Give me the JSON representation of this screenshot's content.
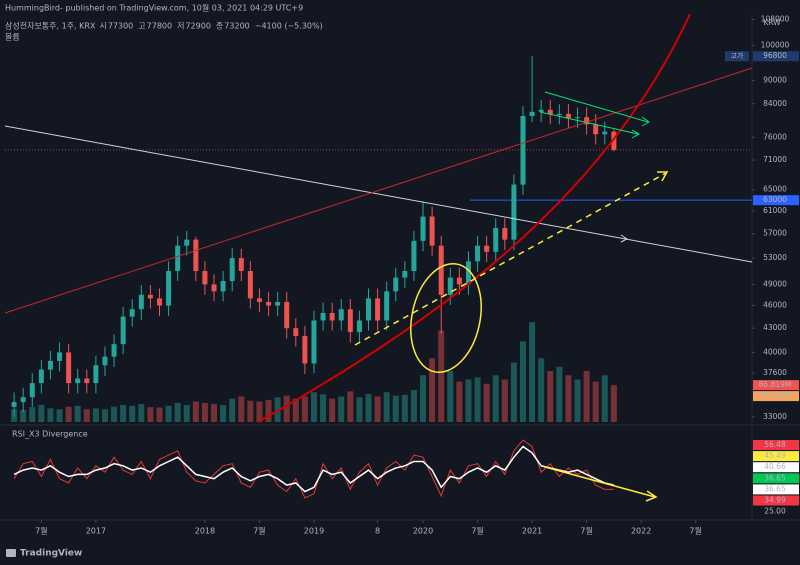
{
  "header": {
    "published": "HummingBird- published on TradingView.com, 10월 03, 2021 04:29 UTC+9",
    "logo": "TradingView"
  },
  "chart_data": [
    {
      "type": "candlestick",
      "symbol": "삼성전자보통주, 1주, KRX",
      "volume_title": "볼륨",
      "legend": [
        {
          "key": "시",
          "text": "77300"
        },
        {
          "key": "고",
          "text": "77800"
        },
        {
          "key": "저",
          "text": "72900"
        },
        {
          "key": "종",
          "text": "73200"
        }
      ],
      "change": "−4100 (−5.30%)",
      "currency": "KRW",
      "log_scale": true,
      "up_color": "#26a69a",
      "down_color": "#ef5350",
      "x": [
        -9,
        -8,
        -7,
        -6,
        -5,
        -4,
        -3,
        -2,
        -1,
        0,
        1,
        2,
        3,
        4,
        5,
        6,
        7,
        8,
        9,
        10,
        11,
        12,
        13,
        14,
        15,
        16,
        17,
        18,
        19,
        20,
        21,
        22,
        23,
        24,
        25,
        26,
        27,
        28,
        29,
        30,
        31,
        32,
        33,
        34,
        35,
        36,
        37,
        38,
        39,
        40,
        41,
        42,
        43,
        44,
        45,
        46,
        47,
        48,
        49,
        50,
        51,
        52,
        53,
        54,
        55,
        56,
        57
      ],
      "open": [
        34000,
        34500,
        35000,
        36500,
        38000,
        39000,
        40000,
        36500,
        37000,
        36500,
        38500,
        39500,
        41000,
        44500,
        45500,
        47500,
        47000,
        46000,
        51000,
        55000,
        56000,
        51000,
        49000,
        48000,
        49500,
        53000,
        51000,
        47000,
        46500,
        46000,
        46500,
        43000,
        42000,
        38700,
        44000,
        45000,
        44000,
        45500,
        42500,
        44000,
        47000,
        44000,
        48000,
        50000,
        51000,
        55800,
        60000,
        55000,
        47500,
        50000,
        49000,
        52500,
        55000,
        54000,
        58000,
        56000,
        66000,
        81000,
        82000,
        82500,
        81400,
        81500,
        80500,
        80700,
        79000,
        76700,
        77300
      ],
      "high": [
        35500,
        36000,
        37600,
        39100,
        40200,
        41200,
        41000,
        38100,
        38000,
        39600,
        40700,
        42200,
        45800,
        46900,
        48900,
        48900,
        48400,
        52500,
        56600,
        57500,
        56500,
        52500,
        50500,
        51000,
        54600,
        54500,
        52500,
        48400,
        47900,
        47900,
        47900,
        44300,
        43300,
        45300,
        46400,
        46400,
        46900,
        46900,
        45300,
        48400,
        48400,
        49400,
        51500,
        52500,
        57500,
        62800,
        61800,
        56600,
        51500,
        51500,
        54100,
        56600,
        56600,
        59700,
        59700,
        68000,
        83400,
        96800,
        85000,
        85000,
        83900,
        83900,
        83100,
        83100,
        81400,
        79600,
        77800
      ],
      "low": [
        33000,
        33500,
        34000,
        35400,
        36900,
        37800,
        35400,
        35400,
        35400,
        35400,
        37300,
        38300,
        39800,
        43200,
        44100,
        45600,
        44600,
        44600,
        49500,
        53400,
        49500,
        47500,
        46600,
        46600,
        48000,
        49500,
        45600,
        45100,
        44600,
        44600,
        41700,
        40700,
        37500,
        37600,
        42700,
        42700,
        42700,
        41200,
        41200,
        42700,
        42700,
        42700,
        46600,
        48500,
        49500,
        54100,
        53400,
        42300,
        46100,
        47500,
        47500,
        50900,
        52400,
        52400,
        54300,
        54300,
        64000,
        79500,
        79500,
        79000,
        79000,
        78100,
        78100,
        76600,
        74400,
        74400,
        72900
      ],
      "close": [
        34500,
        35000,
        36500,
        38000,
        39000,
        40000,
        36500,
        37000,
        36500,
        38500,
        39500,
        41000,
        44500,
        45500,
        47500,
        47000,
        46000,
        51000,
        55000,
        56000,
        51000,
        49000,
        48000,
        49500,
        53000,
        51000,
        47000,
        46500,
        46000,
        46500,
        43000,
        42000,
        38700,
        44000,
        45000,
        44000,
        45500,
        42500,
        44000,
        47000,
        44000,
        48000,
        50000,
        51000,
        55800,
        60000,
        55000,
        47500,
        50000,
        49000,
        52500,
        55000,
        54000,
        58000,
        56000,
        66000,
        81000,
        82000,
        82500,
        81400,
        81500,
        80500,
        80700,
        79000,
        76700,
        77300,
        73200
      ],
      "volume": [
        30,
        28,
        35,
        40,
        32,
        30,
        36,
        38,
        30,
        32,
        30,
        36,
        40,
        38,
        42,
        35,
        34,
        38,
        45,
        40,
        48,
        45,
        42,
        40,
        55,
        60,
        50,
        48,
        52,
        58,
        62,
        55,
        60,
        70,
        65,
        55,
        60,
        72,
        58,
        66,
        60,
        70,
        62,
        64,
        75,
        110,
        150,
        215,
        120,
        95,
        100,
        105,
        90,
        110,
        100,
        140,
        190,
        235,
        150,
        120,
        130,
        110,
        100,
        120,
        95,
        110,
        86.819
      ],
      "volume_labels": {
        "last": "86.819M",
        "average": "78.326M"
      },
      "xlim": [
        -10,
        72.2
      ],
      "ylim": [
        32500,
        109800
      ],
      "y2lim": [
        0,
        960
      ],
      "xticks": [
        {
          "value": -6,
          "label": "7월"
        },
        {
          "value": 0,
          "label": "2017"
        },
        {
          "value": 12,
          "label": "2018"
        },
        {
          "value": 18,
          "label": "7월"
        },
        {
          "value": 24,
          "label": "2019"
        },
        {
          "value": 31,
          "label": "8"
        },
        {
          "value": 36,
          "label": "2020"
        },
        {
          "value": 42,
          "label": "7월"
        },
        {
          "value": 48,
          "label": "2021"
        },
        {
          "value": 54,
          "label": "7월"
        },
        {
          "value": 60,
          "label": "2022"
        },
        {
          "value": 66,
          "label": "7월"
        }
      ],
      "yticks": [
        108000,
        100000,
        90000,
        84000,
        76000,
        71000,
        65000,
        61000,
        57000,
        53000,
        49000,
        46000,
        43000,
        40000,
        37600,
        33000
      ],
      "high_marker": {
        "value": 96800,
        "tag": "고가"
      },
      "level_line": {
        "value": 63000,
        "color": "#2962ff"
      }
    },
    {
      "type": "line",
      "title": "RSI_X3 Divergence",
      "x": [
        -9,
        -8,
        -7,
        -6,
        -5,
        -4,
        -3,
        -2,
        -1,
        0,
        1,
        2,
        3,
        4,
        5,
        6,
        7,
        8,
        9,
        10,
        11,
        12,
        13,
        14,
        15,
        16,
        17,
        18,
        19,
        20,
        21,
        22,
        23,
        24,
        25,
        26,
        27,
        28,
        29,
        30,
        31,
        32,
        33,
        34,
        35,
        36,
        37,
        38,
        39,
        40,
        41,
        42,
        43,
        44,
        45,
        46,
        47,
        48,
        49,
        50,
        51,
        52,
        53,
        54,
        55,
        56,
        57
      ],
      "series": [
        {
          "color": "#e53935",
          "values": [
            40,
            47,
            48,
            41,
            49,
            40,
            38,
            45,
            40,
            46,
            43,
            50,
            44,
            42,
            48,
            40,
            49,
            51,
            53,
            43,
            39,
            38,
            42,
            46,
            47,
            38,
            36,
            43,
            44,
            37,
            34,
            40,
            31,
            33,
            47,
            40,
            45,
            35,
            43,
            47,
            37,
            45,
            48,
            44,
            51,
            50,
            41,
            32,
            44,
            38,
            46,
            47,
            41,
            48,
            42,
            53,
            58,
            55,
            43,
            47,
            41,
            45,
            42,
            44,
            37,
            35,
            35
          ]
        },
        {
          "color": "#ffffff",
          "values": [
            42,
            44,
            45,
            44,
            46,
            43,
            41,
            42,
            42,
            44,
            45,
            47,
            46,
            44,
            45,
            43,
            46,
            48,
            50,
            46,
            42,
            41,
            40,
            43,
            45,
            41,
            39,
            41,
            42,
            40,
            37,
            38,
            34,
            36,
            44,
            42,
            43,
            38,
            41,
            44,
            40,
            43,
            45,
            46,
            48,
            48,
            44,
            36,
            41,
            40,
            43,
            45,
            43,
            46,
            44,
            50,
            55,
            52,
            46,
            45,
            44,
            43,
            44,
            42,
            40,
            38,
            37
          ]
        }
      ],
      "xlim": [
        -10,
        72.2
      ],
      "ylim": [
        21.7,
        63.6
      ],
      "badges": [
        {
          "label": "56.48",
          "bg": "#f23645",
          "fg": "#ffffff"
        },
        {
          "label": "45.49",
          "bg": "#ffeb3b",
          "fg": "#131722"
        },
        {
          "label": "40.66",
          "bg": "#ffffff",
          "fg": "#131722"
        },
        {
          "label": "36.65",
          "bg": "#00c853",
          "fg": "#ffffff"
        },
        {
          "label": "36.65",
          "bg": "#ffffff",
          "fg": "#131722"
        },
        {
          "label": "34.99",
          "bg": "#f23645",
          "fg": "#ffffff"
        },
        {
          "label": "25.00",
          "bg": "#131722",
          "fg": "#b2b5be"
        }
      ]
    }
  ]
}
